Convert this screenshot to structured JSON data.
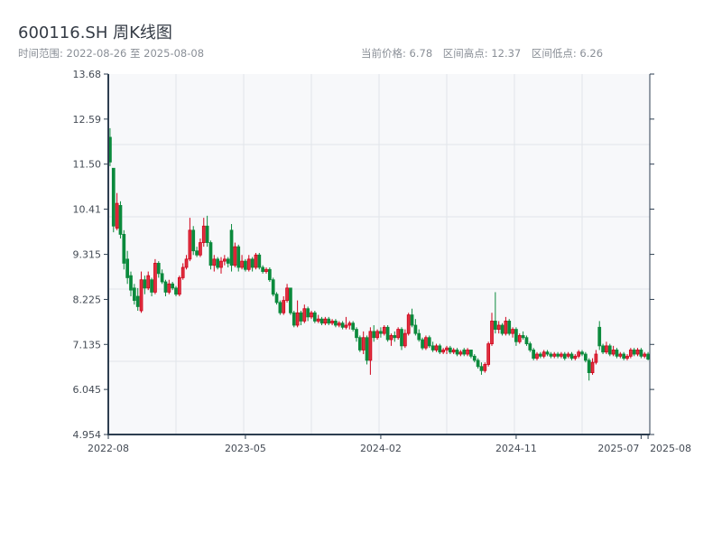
{
  "header": {
    "title": "600116.SH 周K线图",
    "range_label": "时间范围: 2022-08-26 至 2025-08-08",
    "current_price": "当前价格: 6.78",
    "high": "区间高点: 12.37",
    "low": "区间低点: 6.26"
  },
  "colors": {
    "up": "#d0021b",
    "down": "#0b8a3c",
    "axis": "#2d3e50",
    "plot_bg": "#f7f8fa",
    "grid": "#e2e5ea"
  },
  "chart_data": {
    "type": "candlestick",
    "title": "600116.SH 周K线图",
    "interval": "weekly",
    "date_range": [
      "2022-08-26",
      "2025-08-08"
    ],
    "ylim": [
      4.954,
      13.68
    ],
    "y_ticks": [
      "4.954",
      "6.045",
      "7.135",
      "8.225",
      "9.315",
      "10.41",
      "11.50",
      "12.59",
      "13.68"
    ],
    "x_ticks": [
      {
        "label": "2022-08",
        "week": 0
      },
      {
        "label": "2023-05",
        "week": 39
      },
      {
        "label": "2024-02",
        "week": 78
      },
      {
        "label": "2024-11",
        "week": 117
      },
      {
        "label": "2025-07",
        "week": 153
      },
      {
        "label": "2025-08",
        "week": 155
      }
    ],
    "grid": true,
    "ohlc_fields": [
      "open",
      "high",
      "low",
      "close"
    ],
    "ohlc": [
      [
        12.15,
        12.37,
        11.45,
        11.55
      ],
      [
        11.4,
        11.4,
        9.85,
        10.0
      ],
      [
        9.95,
        10.8,
        9.9,
        10.55
      ],
      [
        10.5,
        10.6,
        9.7,
        9.8
      ],
      [
        9.8,
        9.9,
        8.95,
        9.1
      ],
      [
        9.2,
        9.4,
        8.6,
        8.75
      ],
      [
        8.8,
        8.9,
        8.3,
        8.45
      ],
      [
        8.5,
        8.6,
        8.1,
        8.2
      ],
      [
        8.3,
        8.5,
        7.95,
        8.05
      ],
      [
        7.95,
        8.9,
        7.9,
        8.7
      ],
      [
        8.7,
        8.8,
        8.35,
        8.5
      ],
      [
        8.5,
        8.9,
        8.45,
        8.8
      ],
      [
        8.7,
        8.75,
        8.3,
        8.4
      ],
      [
        8.4,
        9.2,
        8.35,
        9.1
      ],
      [
        9.1,
        9.15,
        8.75,
        8.85
      ],
      [
        8.85,
        8.95,
        8.6,
        8.65
      ],
      [
        8.65,
        8.7,
        8.3,
        8.4
      ],
      [
        8.4,
        8.7,
        8.35,
        8.6
      ],
      [
        8.6,
        8.65,
        8.45,
        8.5
      ],
      [
        8.5,
        8.55,
        8.3,
        8.35
      ],
      [
        8.35,
        8.8,
        8.3,
        8.75
      ],
      [
        8.75,
        9.1,
        8.7,
        9.0
      ],
      [
        9.0,
        9.3,
        8.95,
        9.2
      ],
      [
        9.2,
        10.2,
        9.15,
        9.9
      ],
      [
        9.9,
        10.0,
        9.3,
        9.4
      ],
      [
        9.4,
        9.5,
        9.25,
        9.3
      ],
      [
        9.3,
        9.7,
        9.25,
        9.6
      ],
      [
        9.6,
        10.2,
        9.5,
        10.0
      ],
      [
        10.0,
        10.25,
        9.5,
        9.6
      ],
      [
        9.6,
        9.65,
        8.95,
        9.05
      ],
      [
        9.05,
        9.3,
        8.9,
        9.2
      ],
      [
        9.2,
        9.25,
        8.95,
        9.0
      ],
      [
        9.0,
        9.25,
        8.85,
        9.15
      ],
      [
        9.15,
        9.3,
        9.05,
        9.2
      ],
      [
        9.2,
        9.25,
        9.0,
        9.1
      ],
      [
        9.9,
        10.05,
        8.9,
        9.05
      ],
      [
        9.05,
        9.6,
        9.0,
        9.5
      ],
      [
        9.5,
        9.55,
        8.9,
        9.0
      ],
      [
        9.0,
        9.3,
        8.95,
        9.15
      ],
      [
        9.15,
        9.2,
        8.9,
        8.95
      ],
      [
        8.95,
        9.3,
        8.9,
        9.2
      ],
      [
        9.2,
        9.25,
        8.9,
        9.0
      ],
      [
        9.0,
        9.35,
        8.95,
        9.3
      ],
      [
        9.3,
        9.35,
        8.95,
        9.0
      ],
      [
        9.0,
        9.05,
        8.85,
        8.9
      ],
      [
        8.9,
        9.0,
        8.85,
        8.95
      ],
      [
        8.95,
        9.0,
        8.65,
        8.7
      ],
      [
        8.7,
        8.75,
        8.3,
        8.35
      ],
      [
        8.35,
        8.4,
        8.1,
        8.15
      ],
      [
        8.15,
        8.2,
        7.85,
        7.9
      ],
      [
        7.9,
        8.3,
        7.85,
        8.2
      ],
      [
        8.2,
        8.6,
        8.15,
        8.5
      ],
      [
        8.5,
        8.5,
        7.85,
        7.9
      ],
      [
        7.9,
        7.95,
        7.55,
        7.6
      ],
      [
        7.6,
        8.2,
        7.55,
        7.9
      ],
      [
        7.9,
        7.95,
        7.6,
        7.7
      ],
      [
        7.7,
        8.1,
        7.65,
        8.0
      ],
      [
        8.0,
        8.05,
        7.7,
        7.8
      ],
      [
        7.8,
        7.95,
        7.75,
        7.9
      ],
      [
        7.9,
        7.95,
        7.65,
        7.7
      ],
      [
        7.7,
        7.85,
        7.65,
        7.75
      ],
      [
        7.75,
        7.8,
        7.6,
        7.65
      ],
      [
        7.65,
        7.8,
        7.6,
        7.75
      ],
      [
        7.75,
        7.8,
        7.6,
        7.65
      ],
      [
        7.65,
        7.75,
        7.6,
        7.7
      ],
      [
        7.7,
        7.75,
        7.55,
        7.6
      ],
      [
        7.6,
        7.7,
        7.55,
        7.65
      ],
      [
        7.65,
        7.7,
        7.5,
        7.55
      ],
      [
        7.55,
        7.8,
        7.5,
        7.6
      ],
      [
        7.6,
        7.7,
        7.5,
        7.65
      ],
      [
        7.65,
        7.7,
        7.45,
        7.5
      ],
      [
        7.5,
        7.55,
        7.2,
        7.3
      ],
      [
        7.3,
        7.35,
        6.95,
        7.0
      ],
      [
        7.0,
        7.45,
        6.9,
        7.3
      ],
      [
        7.3,
        7.35,
        6.65,
        6.75
      ],
      [
        6.75,
        7.55,
        6.4,
        7.45
      ],
      [
        7.45,
        7.6,
        7.2,
        7.3
      ],
      [
        7.3,
        7.5,
        7.25,
        7.45
      ],
      [
        7.45,
        7.55,
        7.3,
        7.4
      ],
      [
        7.4,
        7.6,
        7.35,
        7.55
      ],
      [
        7.55,
        7.6,
        7.2,
        7.25
      ],
      [
        7.25,
        7.4,
        7.1,
        7.35
      ],
      [
        7.35,
        7.45,
        7.2,
        7.3
      ],
      [
        7.3,
        7.55,
        7.25,
        7.5
      ],
      [
        7.5,
        7.55,
        7.0,
        7.1
      ],
      [
        7.1,
        7.5,
        7.05,
        7.4
      ],
      [
        7.4,
        7.9,
        7.35,
        7.85
      ],
      [
        7.85,
        8.0,
        7.55,
        7.6
      ],
      [
        7.6,
        7.75,
        7.35,
        7.4
      ],
      [
        7.4,
        7.5,
        7.2,
        7.25
      ],
      [
        7.25,
        7.3,
        7.0,
        7.05
      ],
      [
        7.05,
        7.35,
        7.0,
        7.3
      ],
      [
        7.3,
        7.35,
        7.05,
        7.1
      ],
      [
        7.1,
        7.2,
        6.95,
        7.0
      ],
      [
        7.0,
        7.15,
        6.95,
        7.1
      ],
      [
        7.1,
        7.15,
        6.9,
        6.95
      ],
      [
        6.95,
        7.05,
        6.9,
        7.0
      ],
      [
        7.0,
        7.1,
        6.9,
        7.05
      ],
      [
        7.05,
        7.1,
        6.9,
        6.95
      ],
      [
        6.95,
        7.05,
        6.9,
        7.0
      ],
      [
        7.0,
        7.05,
        6.85,
        6.9
      ],
      [
        6.9,
        7.0,
        6.85,
        6.95
      ],
      [
        7.0,
        7.05,
        6.85,
        6.9
      ],
      [
        6.9,
        7.05,
        6.85,
        7.0
      ],
      [
        7.0,
        7.0,
        6.8,
        6.85
      ],
      [
        6.85,
        6.9,
        6.7,
        6.75
      ],
      [
        6.75,
        6.8,
        6.55,
        6.6
      ],
      [
        6.6,
        6.7,
        6.4,
        6.5
      ],
      [
        6.5,
        6.7,
        6.45,
        6.65
      ],
      [
        6.65,
        7.2,
        6.6,
        7.15
      ],
      [
        7.15,
        7.9,
        7.1,
        7.7
      ],
      [
        7.7,
        8.4,
        7.4,
        7.5
      ],
      [
        7.5,
        7.7,
        7.4,
        7.6
      ],
      [
        7.6,
        7.65,
        7.35,
        7.4
      ],
      [
        7.4,
        7.8,
        7.35,
        7.7
      ],
      [
        7.7,
        7.75,
        7.35,
        7.4
      ],
      [
        7.4,
        7.55,
        7.3,
        7.5
      ],
      [
        7.5,
        7.55,
        7.1,
        7.2
      ],
      [
        7.2,
        7.4,
        7.15,
        7.35
      ],
      [
        7.35,
        7.45,
        7.25,
        7.3
      ],
      [
        7.3,
        7.35,
        7.1,
        7.15
      ],
      [
        7.15,
        7.2,
        6.95,
        7.0
      ],
      [
        7.0,
        7.05,
        6.75,
        6.8
      ],
      [
        6.8,
        6.95,
        6.75,
        6.9
      ],
      [
        6.9,
        6.95,
        6.8,
        6.85
      ],
      [
        6.85,
        7.0,
        6.8,
        6.95
      ],
      [
        6.95,
        7.0,
        6.85,
        6.9
      ],
      [
        6.9,
        6.95,
        6.8,
        6.85
      ],
      [
        6.85,
        6.95,
        6.8,
        6.9
      ],
      [
        6.9,
        6.95,
        6.8,
        6.85
      ],
      [
        6.85,
        6.95,
        6.8,
        6.9
      ],
      [
        6.9,
        6.95,
        6.75,
        6.8
      ],
      [
        6.85,
        6.95,
        6.8,
        6.9
      ],
      [
        6.9,
        6.95,
        6.75,
        6.8
      ],
      [
        6.8,
        6.9,
        6.75,
        6.85
      ],
      [
        6.85,
        7.0,
        6.8,
        6.95
      ],
      [
        6.95,
        7.0,
        6.85,
        6.9
      ],
      [
        6.9,
        6.95,
        6.7,
        6.75
      ],
      [
        6.75,
        6.8,
        6.26,
        6.45
      ],
      [
        6.45,
        6.8,
        6.4,
        6.7
      ],
      [
        6.7,
        7.0,
        6.65,
        6.9
      ],
      [
        7.55,
        7.7,
        7.0,
        7.1
      ],
      [
        7.1,
        7.15,
        6.9,
        6.95
      ],
      [
        6.95,
        7.2,
        6.9,
        7.1
      ],
      [
        7.1,
        7.15,
        6.85,
        6.9
      ],
      [
        6.9,
        7.1,
        6.85,
        7.0
      ],
      [
        7.0,
        7.05,
        6.8,
        6.85
      ],
      [
        6.85,
        6.95,
        6.8,
        6.9
      ],
      [
        6.9,
        6.95,
        6.75,
        6.8
      ],
      [
        6.8,
        6.9,
        6.75,
        6.85
      ],
      [
        6.85,
        7.05,
        6.8,
        7.0
      ],
      [
        7.0,
        7.05,
        6.85,
        6.9
      ],
      [
        6.9,
        7.05,
        6.85,
        7.0
      ],
      [
        7.0,
        7.05,
        6.8,
        6.85
      ],
      [
        6.85,
        6.95,
        6.8,
        6.9
      ],
      [
        6.9,
        6.95,
        6.75,
        6.78
      ]
    ]
  }
}
